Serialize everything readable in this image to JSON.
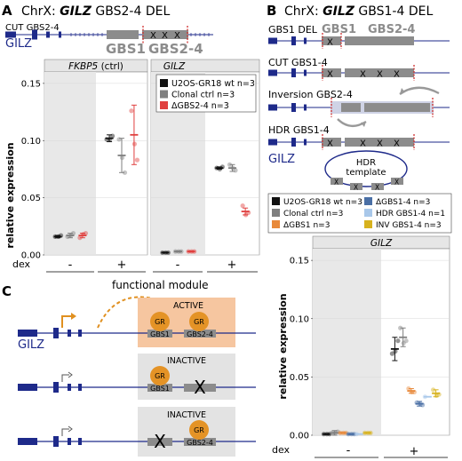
{
  "panelA": {
    "letter": "A",
    "title_pre": "ChrX: ",
    "title_gene": "GILZ",
    "title_post": " GBS2-4 DEL",
    "track_label": "CUT GBS2-4",
    "gene_label": "GILZ",
    "gbs1": "GBS1",
    "gbs24": "GBS2-4",
    "ylabel": "relative expression",
    "dex_label": "dex",
    "dex_minus": "-",
    "dex_plus": "+",
    "legend": [
      {
        "label": "U2OS-GR18 wt n=3",
        "color": "#111111"
      },
      {
        "label": "Clonal ctrl n=3",
        "color": "#7f7f7f"
      },
      {
        "label": "ΔGBS2-4 n=3",
        "color": "#e0403f"
      }
    ]
  },
  "panelB": {
    "letter": "B",
    "title_pre": "ChrX: ",
    "title_gene": "GILZ",
    "title_post": " GBS1-4 DEL",
    "tracks": [
      "GBS1 DEL",
      "CUT GBS1-4",
      "Inversion GBS2-4",
      "HDR GBS1-4"
    ],
    "gbs1": "GBS1",
    "gbs24": "GBS2-4",
    "gene_label": "GILZ",
    "hdr_template_1": "HDR",
    "hdr_template_2": "template",
    "ylabel": "relative expression",
    "dex_label": "dex",
    "dex_minus": "-",
    "dex_plus": "+",
    "legend": [
      {
        "label": "U2OS-GR18 wt n=3",
        "color": "#111111"
      },
      {
        "label": "ΔGBS1-4 n=3",
        "color": "#4a6fa5"
      },
      {
        "label": "Clonal ctrl n=3",
        "color": "#7f7f7f"
      },
      {
        "label": "HDR GBS1-4 n=1",
        "color": "#a9c8ea"
      },
      {
        "label": "ΔGBS1 n=3",
        "color": "#e8893a"
      },
      {
        "label": "INV GBS1-4 n=3",
        "color": "#d7b21e"
      }
    ]
  },
  "panelC": {
    "letter": "C",
    "functional_module": "functional module",
    "active": "ACTIVE",
    "inactive1": "INACTIVE",
    "inactive2": "INACTIVE",
    "gr": "GR",
    "gbs1": "GBS1",
    "gbs24": "GBS2-4",
    "gene_label": "GILZ"
  },
  "chart_data": [
    {
      "type": "scatter",
      "title": "FKBP5 (ctrl)",
      "ylabel": "relative expression",
      "ylim": [
        0,
        0.16
      ],
      "yticks": [
        0.0,
        0.05,
        0.1,
        0.15
      ],
      "categories": [
        "-",
        "+"
      ],
      "series": [
        {
          "name": "U2OS-GR18 wt n=3",
          "mean": [
            0.016,
            0.102
          ],
          "err": [
            0.001,
            0.003
          ],
          "points": [
            [
              0.016,
              0.017,
              0.016
            ],
            [
              0.101,
              0.104,
              0.101
            ]
          ]
        },
        {
          "name": "Clonal ctrl n=3",
          "mean": [
            0.017,
            0.087
          ],
          "err": [
            0.002,
            0.015
          ],
          "points": [
            [
              0.016,
              0.019,
              0.017
            ],
            [
              0.101,
              0.072,
              0.085
            ]
          ]
        },
        {
          "name": "ΔGBS2-4 n=3",
          "mean": [
            0.017,
            0.105
          ],
          "err": [
            0.002,
            0.026
          ],
          "points": [
            [
              0.015,
              0.019,
              0.018
            ],
            [
              0.126,
              0.083,
              0.097
            ]
          ]
        }
      ]
    },
    {
      "type": "scatter",
      "title": "GILZ",
      "ylim": [
        0,
        0.16
      ],
      "categories": [
        "-",
        "+"
      ],
      "series": [
        {
          "name": "U2OS-GR18 wt n=3",
          "mean": [
            0.002,
            0.076
          ],
          "err": [
            0.0005,
            0.001
          ],
          "points": [
            [
              0.002,
              0.002,
              0.002
            ],
            [
              0.076,
              0.077,
              0.075
            ]
          ]
        },
        {
          "name": "Clonal ctrl n=3",
          "mean": [
            0.003,
            0.076
          ],
          "err": [
            0.0005,
            0.003
          ],
          "points": [
            [
              0.003,
              0.003,
              0.003
            ],
            [
              0.079,
              0.074,
              0.076
            ]
          ]
        },
        {
          "name": "ΔGBS2-4 n=3",
          "mean": [
            0.003,
            0.038
          ],
          "err": [
            0.0005,
            0.003
          ],
          "points": [
            [
              0.003,
              0.003,
              0.003
            ],
            [
              0.043,
              0.037,
              0.035
            ]
          ]
        }
      ]
    },
    {
      "type": "scatter",
      "title": "GILZ",
      "ylabel": "relative expression",
      "ylim": [
        0,
        0.16
      ],
      "yticks": [
        0.0,
        0.05,
        0.1,
        0.15
      ],
      "categories": [
        "-",
        "+"
      ],
      "series": [
        {
          "name": "U2OS-GR18 wt n=3",
          "mean": [
            0.001,
            0.074
          ],
          "err": [
            0.0005,
            0.01
          ],
          "points": [
            [
              0.001,
              0.001,
              0.001
            ],
            [
              0.07,
              0.081,
              0.072
            ]
          ]
        },
        {
          "name": "Clonal ctrl n=3",
          "mean": [
            0.002,
            0.084
          ],
          "err": [
            0.002,
            0.008
          ],
          "points": [
            [
              0.002,
              0.003,
              0.002
            ],
            [
              0.092,
              0.081,
              0.079
            ]
          ]
        },
        {
          "name": "ΔGBS1 n=3",
          "mean": [
            0.002,
            0.038
          ],
          "err": [
            0.0005,
            0.002
          ],
          "points": [
            [
              0.002,
              0.002,
              0.002
            ],
            [
              0.04,
              0.037,
              0.037
            ]
          ]
        },
        {
          "name": "ΔGBS1-4 n=3",
          "mean": [
            0.001,
            0.027
          ],
          "err": [
            0.0005,
            0.002
          ],
          "points": [
            [
              0.001,
              0.001,
              0.001
            ],
            [
              0.028,
              0.026,
              0.027
            ]
          ]
        },
        {
          "name": "HDR GBS1-4 n=1",
          "mean": [
            0.001,
            0.033
          ],
          "err": [
            0,
            0
          ],
          "points": [
            [
              0.001
            ],
            [
              0.033
            ]
          ]
        },
        {
          "name": "INV GBS1-4 n=3",
          "mean": [
            0.002,
            0.036
          ],
          "err": [
            0.0005,
            0.003
          ],
          "points": [
            [
              0.002,
              0.002,
              0.002
            ],
            [
              0.039,
              0.035,
              0.034
            ]
          ]
        }
      ]
    }
  ]
}
